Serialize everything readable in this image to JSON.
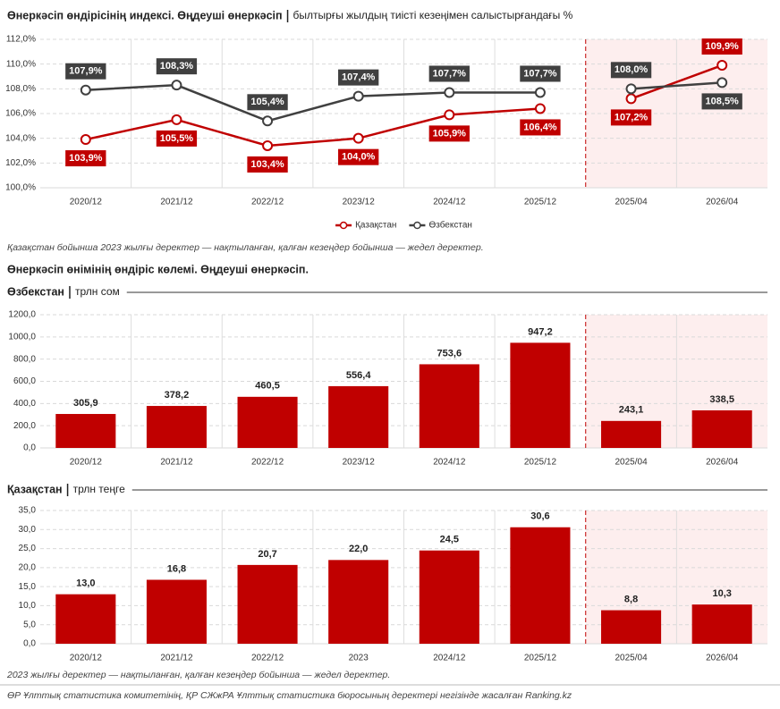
{
  "chart_data": [
    {
      "type": "line",
      "title": "Өнеркәсіп өндірісінің индексі. Өңдеуші өнеркәсіп",
      "subtitle": "былтырғы жылдың тиісті кезеңімен салыстырғандағы %",
      "categories": [
        "2020/12",
        "2021/12",
        "2022/12",
        "2023/12",
        "2024/12",
        "2025/12",
        "2025/04",
        "2026/04"
      ],
      "shaded": [
        false,
        false,
        false,
        false,
        false,
        false,
        true,
        true
      ],
      "series": [
        {
          "name": "Қазақстан",
          "color": "#c00000",
          "values": [
            103.9,
            105.5,
            103.4,
            104.0,
            105.9,
            106.4,
            107.2,
            109.9
          ],
          "value_labels": [
            "103,9%",
            "105,5%",
            "103,4%",
            "104,0%",
            "105,9%",
            "106,4%",
            "107,2%",
            "109,9%"
          ]
        },
        {
          "name": "Өзбекстан",
          "color": "#404040",
          "values": [
            107.9,
            108.3,
            105.4,
            107.4,
            107.7,
            107.7,
            108.0,
            108.5
          ],
          "value_labels": [
            "107,9%",
            "108,3%",
            "105,4%",
            "107,4%",
            "107,7%",
            "107,7%",
            "108,0%",
            "108,5%"
          ]
        }
      ],
      "ylim": [
        100,
        112
      ],
      "yticks": [
        {
          "value": 100,
          "label": "100,0%"
        },
        {
          "value": 102,
          "label": "102,0%"
        },
        {
          "value": 104,
          "label": "104,0%"
        },
        {
          "value": 106,
          "label": "106,0%"
        },
        {
          "value": 108,
          "label": "108,0%"
        },
        {
          "value": 110,
          "label": "110,0%"
        },
        {
          "value": 112,
          "label": "112,0%"
        }
      ],
      "grid": true,
      "legend": "bottom"
    },
    {
      "type": "bar",
      "title": "Өзбекстан",
      "subtitle": "трлн сом",
      "categories": [
        "2020/12",
        "2021/12",
        "2022/12",
        "2023/12",
        "2024/12",
        "2025/12",
        "2025/04",
        "2026/04"
      ],
      "shaded": [
        false,
        false,
        false,
        false,
        false,
        false,
        true,
        true
      ],
      "values": [
        305.9,
        378.2,
        460.5,
        556.4,
        753.6,
        947.2,
        243.1,
        338.5
      ],
      "value_labels": [
        "305,9",
        "378,2",
        "460,5",
        "556,4",
        "753,6",
        "947,2",
        "243,1",
        "338,5"
      ],
      "color": "#c00000",
      "ylim": [
        0,
        1200
      ],
      "yticks": [
        {
          "value": 0,
          "label": "0,0"
        },
        {
          "value": 200,
          "label": "200,0"
        },
        {
          "value": 400,
          "label": "400,0"
        },
        {
          "value": 600,
          "label": "600,0"
        },
        {
          "value": 800,
          "label": "800,0"
        },
        {
          "value": 1000,
          "label": "1000,0"
        },
        {
          "value": 1200,
          "label": "1200,0"
        }
      ],
      "grid": true
    },
    {
      "type": "bar",
      "title": "Қазақстан",
      "subtitle": "трлн теңге",
      "categories": [
        "2020/12",
        "2021/12",
        "2022/12",
        "2023",
        "2024/12",
        "2025/12",
        "2025/04",
        "2026/04"
      ],
      "shaded": [
        false,
        false,
        false,
        false,
        false,
        false,
        true,
        true
      ],
      "values": [
        13.0,
        16.8,
        20.7,
        22.0,
        24.5,
        30.6,
        8.8,
        10.3
      ],
      "value_labels": [
        "13,0",
        "16,8",
        "20,7",
        "22,0",
        "24,5",
        "30,6",
        "8,8",
        "10,3"
      ],
      "color": "#c00000",
      "ylim": [
        0,
        35
      ],
      "yticks": [
        {
          "value": 0,
          "label": "0,0"
        },
        {
          "value": 5,
          "label": "5,0"
        },
        {
          "value": 10,
          "label": "10,0"
        },
        {
          "value": 15,
          "label": "15,0"
        },
        {
          "value": 20,
          "label": "20,0"
        },
        {
          "value": 25,
          "label": "25,0"
        },
        {
          "value": 30,
          "label": "30,0"
        },
        {
          "value": 35,
          "label": "35,0"
        }
      ],
      "grid": true
    }
  ],
  "section_title": "Өнеркәсіп өнімінің өндіріс көлемі. Өңдеуші өнеркәсіп.",
  "notes": [
    "Қазақстан бойынша 2023 жылғы деректер — нақтыланған, қалған кезеңдер бойынша — жедел деректер.",
    "2023 жылғы деректер — нақтыланған, қалған кезеңдер бойынша — жедел деректер."
  ],
  "source": "ӨР Ұлттық статистика комитетінің, ҚР СЖжРА Ұлттық статистика бюросының деректері негізінде жасалған Ranking.kz"
}
